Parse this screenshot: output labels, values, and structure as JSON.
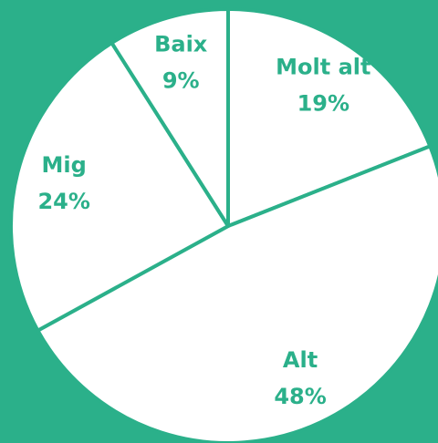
{
  "chart_data": {
    "type": "pie",
    "categories": [
      "Molt alt",
      "Alt",
      "Mig",
      "Baix"
    ],
    "values": [
      19,
      48,
      24,
      9
    ],
    "value_labels": [
      "19%",
      "48%",
      "24%",
      "9%"
    ],
    "color": "#ffffff",
    "border_color": "#2bb08a",
    "label_color": "#2bb08a",
    "background": "#2bb08a"
  }
}
